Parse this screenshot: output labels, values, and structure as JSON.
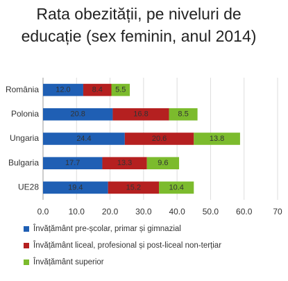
{
  "chart_data": {
    "type": "stacked_bar_horizontal",
    "title": "Rata obezității, pe niveluri de educație (sex feminin, anul 2014)",
    "categories": [
      "România",
      "Polonia",
      "Ungaria",
      "Bulgaria",
      "UE28"
    ],
    "series": [
      {
        "name": "Învățământ pre-școlar, primar și gimnazial",
        "color": "#1f5fb4",
        "values": [
          12.0,
          20.8,
          24.4,
          17.7,
          19.4
        ],
        "value_labels": [
          "12.0",
          "20.8",
          "24.4",
          "17.7",
          "19.4"
        ]
      },
      {
        "name": "Învățământ liceal, profesional și post-liceal non-terțiar",
        "color": "#b52020",
        "values": [
          8.4,
          16.8,
          20.6,
          13.3,
          15.2
        ],
        "value_labels": [
          "8.4",
          "16.8",
          "20.6",
          "13.3",
          "15.2"
        ]
      },
      {
        "name": "Învățământ superior",
        "color": "#7cbb2d",
        "values": [
          5.5,
          8.5,
          13.8,
          9.6,
          10.4
        ],
        "value_labels": [
          "5.5",
          "8.5",
          "13.8",
          "9.6",
          "10.4"
        ]
      }
    ],
    "xlim": [
      0,
      70
    ],
    "xticks": [
      {
        "value": 0,
        "label": "0.0"
      },
      {
        "value": 10,
        "label": "10.0"
      },
      {
        "value": 20,
        "label": "20.0"
      },
      {
        "value": 30,
        "label": "30.0"
      },
      {
        "value": 40,
        "label": "40.0"
      },
      {
        "value": 50,
        "label": "50.0"
      },
      {
        "value": 60,
        "label": "60.0"
      },
      {
        "value": 70,
        "label": "70"
      }
    ]
  }
}
